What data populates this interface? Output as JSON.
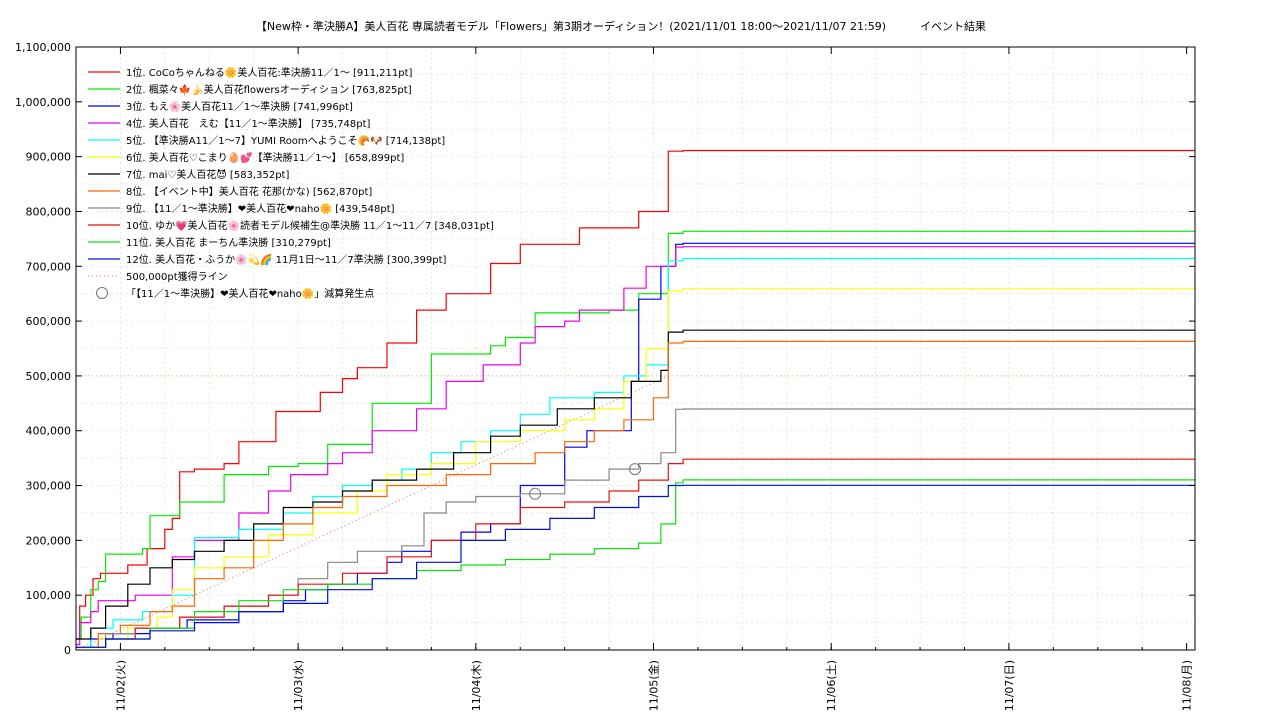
{
  "chart_data": {
    "type": "line",
    "title": "【New枠・準決勝A】美人百花 専属読者モデル「Flowers」第3期オーディション！(2021/11/01 18:00～2021/11/07 21:59)",
    "subtitle": "イベント結果",
    "xlabel": "",
    "ylabel": "",
    "x_range": [
      "2021/11/01 18:00",
      "2021/11/08 00:00"
    ],
    "x_ticks": [
      "11/02(火)",
      "11/03(水)",
      "11/04(木)",
      "11/05(金)",
      "11/06(土)",
      "11/07(日)",
      "11/08(月)"
    ],
    "ylim": [
      0,
      1100000
    ],
    "y_ticks": [
      "0",
      "100,000",
      "200,000",
      "300,000",
      "400,000",
      "500,000",
      "600,000",
      "700,000",
      "800,000",
      "900,000",
      "1,000,000",
      "1,100,000"
    ],
    "grid": true,
    "legend_position": "top-left",
    "series": [
      {
        "name": "1位. CoCoちゃんねる🌼美人百花:準決勝11／1〜 [911,211pt]",
        "color": "#ff0000",
        "points": [
          [
            0,
            20000
          ],
          [
            0.5,
            80000
          ],
          [
            1.3,
            100000
          ],
          [
            2.3,
            130000
          ],
          [
            3.3,
            140000
          ],
          [
            7.0,
            155000
          ],
          [
            9.6,
            185000
          ],
          [
            12.0,
            220000
          ],
          [
            13.0,
            240000
          ],
          [
            14.0,
            325000
          ],
          [
            16.0,
            330000
          ],
          [
            20.0,
            340000
          ],
          [
            22.0,
            380000
          ],
          [
            27.0,
            435000
          ],
          [
            33.0,
            470000
          ],
          [
            36.0,
            495000
          ],
          [
            38.0,
            515000
          ],
          [
            42.0,
            560000
          ],
          [
            46.0,
            620000
          ],
          [
            50.0,
            650000
          ],
          [
            56.0,
            705000
          ],
          [
            60.0,
            740000
          ],
          [
            68.0,
            770000
          ],
          [
            76.0,
            800000
          ],
          [
            80.0,
            910000
          ],
          [
            82.0,
            911211
          ]
        ]
      },
      {
        "name": "2位. 楓菜々🍁🍌美人百花flowersオーディション [763,825pt]",
        "color": "#00ee00",
        "points": [
          [
            0,
            20000
          ],
          [
            0.7,
            60000
          ],
          [
            2.0,
            110000
          ],
          [
            3.0,
            125000
          ],
          [
            4.0,
            175000
          ],
          [
            9.0,
            185000
          ],
          [
            10.0,
            245000
          ],
          [
            13.0,
            245000
          ],
          [
            14.0,
            270000
          ],
          [
            20.0,
            320000
          ],
          [
            26.0,
            335000
          ],
          [
            30.0,
            340000
          ],
          [
            34.0,
            375000
          ],
          [
            40.0,
            450000
          ],
          [
            48.0,
            540000
          ],
          [
            56.0,
            555000
          ],
          [
            58.0,
            570000
          ],
          [
            62.0,
            615000
          ],
          [
            66.0,
            615000
          ],
          [
            72.0,
            620000
          ],
          [
            76.0,
            650000
          ],
          [
            80.0,
            760000
          ],
          [
            82.0,
            763825
          ]
        ]
      },
      {
        "name": "3位. もえ🌸美人百花11／1〜準決勝 [741,996pt]",
        "color": "#0000ff",
        "points": [
          [
            0,
            5000
          ],
          [
            2.0,
            20000
          ],
          [
            5.0,
            30000
          ],
          [
            10.0,
            40000
          ],
          [
            15.0,
            55000
          ],
          [
            22.0,
            70000
          ],
          [
            28.0,
            90000
          ],
          [
            31.0,
            110000
          ],
          [
            34.0,
            120000
          ],
          [
            38.0,
            140000
          ],
          [
            42.0,
            160000
          ],
          [
            44.0,
            180000
          ],
          [
            48.0,
            200000
          ],
          [
            52.0,
            215000
          ],
          [
            56.0,
            230000
          ],
          [
            60.0,
            300000
          ],
          [
            66.0,
            370000
          ],
          [
            69.0,
            400000
          ],
          [
            75.0,
            490000
          ],
          [
            76.0,
            640000
          ],
          [
            79.0,
            700000
          ],
          [
            81.0,
            740000
          ],
          [
            82.0,
            741996
          ]
        ]
      },
      {
        "name": "4位. 美人百花　えむ【11／1〜準決勝】 [735,748pt]",
        "color": "#ee00ee",
        "points": [
          [
            0,
            10000
          ],
          [
            0.5,
            50000
          ],
          [
            2.0,
            70000
          ],
          [
            3.0,
            90000
          ],
          [
            8.0,
            100000
          ],
          [
            13.0,
            170000
          ],
          [
            16.0,
            200000
          ],
          [
            22.0,
            250000
          ],
          [
            26.0,
            290000
          ],
          [
            29.0,
            320000
          ],
          [
            34.0,
            340000
          ],
          [
            36.0,
            360000
          ],
          [
            40.0,
            400000
          ],
          [
            46.0,
            440000
          ],
          [
            50.0,
            490000
          ],
          [
            55.0,
            520000
          ],
          [
            60.0,
            560000
          ],
          [
            62.0,
            590000
          ],
          [
            66.0,
            600000
          ],
          [
            68.0,
            620000
          ],
          [
            74.0,
            660000
          ],
          [
            77.0,
            700000
          ],
          [
            81.0,
            735000
          ],
          [
            82.0,
            735748
          ]
        ]
      },
      {
        "name": "5位. 【準決勝A11／1〜7】YUMI Roomへようこそ🥐🐶 [714,138pt]",
        "color": "#00ffff",
        "points": [
          [
            0,
            5000
          ],
          [
            2.0,
            40000
          ],
          [
            5.0,
            55000
          ],
          [
            9.0,
            70000
          ],
          [
            13.0,
            100000
          ],
          [
            16.0,
            205000
          ],
          [
            22.0,
            220000
          ],
          [
            28.0,
            250000
          ],
          [
            32.0,
            280000
          ],
          [
            36.0,
            300000
          ],
          [
            40.0,
            310000
          ],
          [
            44.0,
            330000
          ],
          [
            48.0,
            360000
          ],
          [
            52.0,
            380000
          ],
          [
            56.0,
            400000
          ],
          [
            60.0,
            430000
          ],
          [
            64.0,
            460000
          ],
          [
            70.0,
            470000
          ],
          [
            74.0,
            500000
          ],
          [
            77.0,
            520000
          ],
          [
            80.0,
            710000
          ],
          [
            82.0,
            714138
          ]
        ]
      },
      {
        "name": "6位. 美人百花♡こまり🥚💕【準決勝11／1〜】 [658,899pt]",
        "color": "#ffff00",
        "points": [
          [
            0,
            5000
          ],
          [
            3.0,
            20000
          ],
          [
            7.0,
            40000
          ],
          [
            11.0,
            60000
          ],
          [
            13.0,
            110000
          ],
          [
            16.0,
            150000
          ],
          [
            20.0,
            170000
          ],
          [
            26.0,
            210000
          ],
          [
            32.0,
            250000
          ],
          [
            38.0,
            290000
          ],
          [
            42.0,
            320000
          ],
          [
            48.0,
            340000
          ],
          [
            54.0,
            380000
          ],
          [
            60.0,
            400000
          ],
          [
            66.0,
            420000
          ],
          [
            70.0,
            440000
          ],
          [
            74.0,
            490000
          ],
          [
            77.0,
            550000
          ],
          [
            80.0,
            655000
          ],
          [
            82.0,
            658899
          ]
        ]
      },
      {
        "name": "7位. mai♡美人百花😈 [583,352pt]",
        "color": "#000000",
        "points": [
          [
            0,
            20000
          ],
          [
            2.0,
            40000
          ],
          [
            4.0,
            80000
          ],
          [
            7.0,
            120000
          ],
          [
            10.0,
            150000
          ],
          [
            13.0,
            165000
          ],
          [
            16.0,
            180000
          ],
          [
            20.0,
            200000
          ],
          [
            24.0,
            230000
          ],
          [
            28.0,
            260000
          ],
          [
            32.0,
            270000
          ],
          [
            36.0,
            290000
          ],
          [
            40.0,
            310000
          ],
          [
            46.0,
            330000
          ],
          [
            51.0,
            360000
          ],
          [
            56.0,
            390000
          ],
          [
            60.0,
            410000
          ],
          [
            65.0,
            440000
          ],
          [
            70.0,
            460000
          ],
          [
            75.0,
            490000
          ],
          [
            79.0,
            510000
          ],
          [
            80.0,
            580000
          ],
          [
            82.0,
            583352
          ]
        ]
      },
      {
        "name": "8位. 【イベント中】美人百花 花那(かな) [562,870pt]",
        "color": "#ff6600",
        "points": [
          [
            0,
            5000
          ],
          [
            3.0,
            30000
          ],
          [
            6.0,
            45000
          ],
          [
            10.0,
            70000
          ],
          [
            13.0,
            80000
          ],
          [
            16.0,
            130000
          ],
          [
            20.0,
            150000
          ],
          [
            24.0,
            200000
          ],
          [
            28.0,
            230000
          ],
          [
            32.0,
            260000
          ],
          [
            36.0,
            280000
          ],
          [
            42.0,
            300000
          ],
          [
            50.0,
            320000
          ],
          [
            56.0,
            340000
          ],
          [
            62.0,
            360000
          ],
          [
            66.0,
            380000
          ],
          [
            70.0,
            400000
          ],
          [
            74.0,
            420000
          ],
          [
            78.0,
            460000
          ],
          [
            80.0,
            560000
          ],
          [
            82.0,
            562870
          ]
        ]
      },
      {
        "name": "9位. 【11／1〜準決勝】❤美人百花❤naho🌼 [439,548pt]",
        "color": "#888888",
        "points": [
          [
            0,
            5000
          ],
          [
            4.0,
            30000
          ],
          [
            8.0,
            40000
          ],
          [
            14.0,
            60000
          ],
          [
            20.0,
            80000
          ],
          [
            26.0,
            100000
          ],
          [
            30.0,
            130000
          ],
          [
            34.0,
            160000
          ],
          [
            38.0,
            180000
          ],
          [
            44.0,
            190000
          ],
          [
            47.0,
            250000
          ],
          [
            50.0,
            270000
          ],
          [
            54.0,
            280000
          ],
          [
            60.0,
            285000
          ],
          [
            66.0,
            310000
          ],
          [
            72.0,
            330000
          ],
          [
            76.0,
            340000
          ],
          [
            79.0,
            360000
          ],
          [
            81.0,
            439000
          ],
          [
            82.0,
            439548
          ]
        ]
      },
      {
        "name": "10位. ゆか💗美人百花🌸読者モデル候補生@準決勝 11／1〜11／7 [348,031pt]",
        "color": "#ee1111",
        "points": [
          [
            0,
            5000
          ],
          [
            4.0,
            20000
          ],
          [
            8.0,
            40000
          ],
          [
            14.0,
            60000
          ],
          [
            20.0,
            80000
          ],
          [
            26.0,
            100000
          ],
          [
            30.0,
            120000
          ],
          [
            36.0,
            140000
          ],
          [
            42.0,
            170000
          ],
          [
            48.0,
            200000
          ],
          [
            54.0,
            230000
          ],
          [
            60.0,
            260000
          ],
          [
            66.0,
            270000
          ],
          [
            72.0,
            290000
          ],
          [
            76.0,
            310000
          ],
          [
            80.0,
            340000
          ],
          [
            82.0,
            348031
          ]
        ]
      },
      {
        "name": "11位. 美人百花 まーちん準決勝 [310,279pt]",
        "color": "#11dd11",
        "points": [
          [
            0,
            5000
          ],
          [
            4.0,
            20000
          ],
          [
            10.0,
            40000
          ],
          [
            16.0,
            70000
          ],
          [
            22.0,
            90000
          ],
          [
            28.0,
            110000
          ],
          [
            34.0,
            120000
          ],
          [
            40.0,
            130000
          ],
          [
            46.0,
            145000
          ],
          [
            52.0,
            155000
          ],
          [
            58.0,
            165000
          ],
          [
            64.0,
            175000
          ],
          [
            70.0,
            185000
          ],
          [
            76.0,
            195000
          ],
          [
            79.0,
            230000
          ],
          [
            81.0,
            305000
          ],
          [
            82.0,
            310279
          ]
        ]
      },
      {
        "name": "12位. 美人百花・ふうか🌸💫🌈 11月1日〜11／7準決勝 [300,399pt]",
        "color": "#0011dd",
        "points": [
          [
            0,
            5000
          ],
          [
            4.0,
            20000
          ],
          [
            10.0,
            35000
          ],
          [
            16.0,
            50000
          ],
          [
            22.0,
            70000
          ],
          [
            28.0,
            85000
          ],
          [
            34.0,
            110000
          ],
          [
            40.0,
            130000
          ],
          [
            46.0,
            160000
          ],
          [
            52.0,
            200000
          ],
          [
            58.0,
            220000
          ],
          [
            64.0,
            240000
          ],
          [
            70.0,
            260000
          ],
          [
            76.0,
            280000
          ],
          [
            80.0,
            300000
          ],
          [
            82.0,
            300399
          ]
        ]
      }
    ],
    "reference_line": {
      "name": "500,000pt獲得ライン",
      "color": "#ff6666",
      "from": [
        0,
        0
      ],
      "to": [
        80,
        500000
      ]
    },
    "markers": {
      "name": "「【11／1〜準決勝】❤美人百花❤naho🌼」減算発生点",
      "color": "#777777",
      "points": [
        [
          62.0,
          285000
        ],
        [
          75.5,
          330000
        ]
      ]
    }
  }
}
